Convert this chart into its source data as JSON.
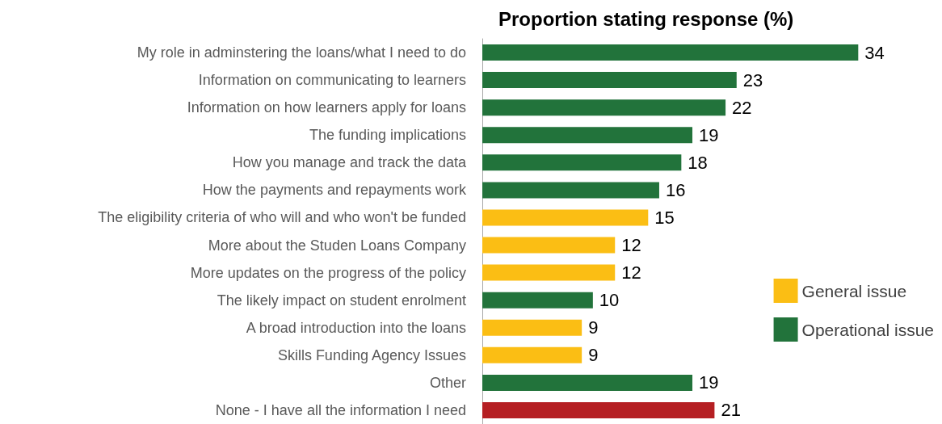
{
  "chart_data": {
    "type": "bar",
    "orientation": "horizontal",
    "title": "Proportion stating response (%)",
    "categories": [
      "My role in adminstering the loans/what I need to do",
      "Information on communicating to learners",
      "Information on how learners apply for loans",
      "The funding implications",
      "How you manage and track the data",
      "How the payments and repayments work",
      "The eligibility criteria of who will and who won't be funded",
      "More about the Studen Loans Company",
      "More updates on the progress of the policy",
      "The likely impact on student enrolment",
      "A broad introduction into the loans",
      "Skills Funding Agency Issues",
      "Other",
      "None - I have all the information I need"
    ],
    "series": [
      {
        "name": "General issue",
        "color": "#fbbe14",
        "values": [
          null,
          null,
          null,
          null,
          null,
          null,
          15,
          12,
          12,
          null,
          9,
          9,
          null,
          null
        ]
      },
      {
        "name": "Operational issue",
        "color": "#22733b",
        "values": [
          34,
          23,
          22,
          19,
          18,
          16,
          null,
          null,
          null,
          10,
          null,
          null,
          19,
          null
        ]
      },
      {
        "color": "#b51f23",
        "values": [
          null,
          null,
          null,
          null,
          null,
          null,
          null,
          null,
          null,
          null,
          null,
          null,
          null,
          21
        ]
      }
    ],
    "data_labels": true,
    "legend": "right",
    "grid": false
  }
}
